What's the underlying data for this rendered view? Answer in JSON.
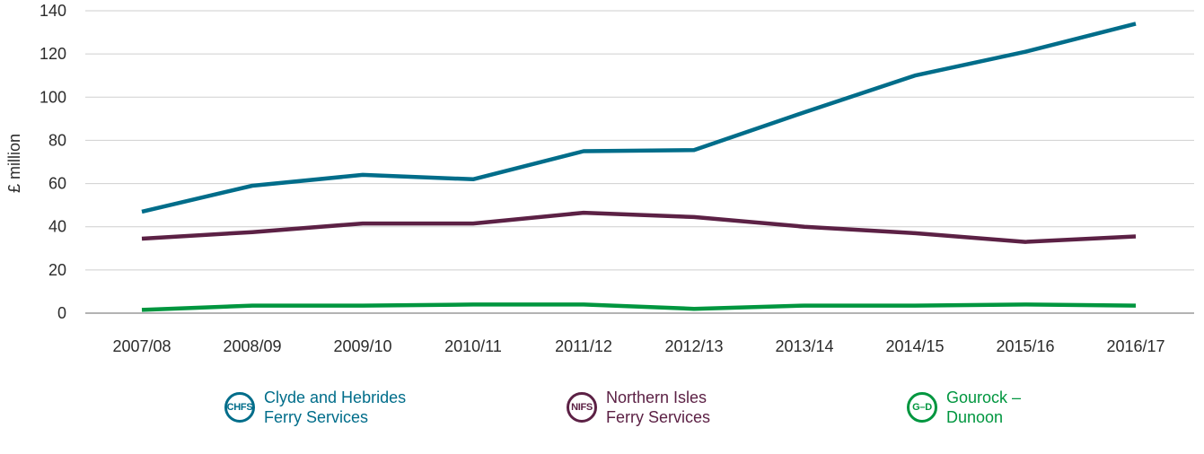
{
  "chart_data": {
    "type": "line",
    "title": "",
    "xlabel": "",
    "ylabel": "£ million",
    "ylim": [
      0,
      140
    ],
    "yticks": [
      0,
      20,
      40,
      60,
      80,
      100,
      120,
      140
    ],
    "grid": true,
    "legend_placement": "bottom",
    "categories": [
      "2007/08",
      "2008/09",
      "2009/10",
      "2010/11",
      "2011/12",
      "2012/13",
      "2013/14",
      "2014/15",
      "2015/16",
      "2016/17"
    ],
    "series": [
      {
        "name": "Clyde and Hebrides Ferry Services",
        "badge": "CHFS",
        "label_lines": [
          "Clyde and Hebrides",
          "Ferry Services"
        ],
        "color": "#006D8A",
        "values": [
          47,
          59,
          64,
          62,
          75,
          75.5,
          93,
          110,
          121,
          134
        ]
      },
      {
        "name": "Northern Isles Ferry Services",
        "badge": "NIFS",
        "label_lines": [
          "Northern Isles",
          "Ferry Services"
        ],
        "color": "#5C2145",
        "values": [
          34.5,
          37.5,
          41.5,
          41.5,
          46.5,
          44.5,
          40,
          37,
          33,
          35.5
        ]
      },
      {
        "name": "Gourock – Dunoon",
        "badge": "G–D",
        "label_lines": [
          "Gourock –",
          "Dunoon"
        ],
        "color": "#00963F",
        "values": [
          1.5,
          3.5,
          3.5,
          4,
          4,
          2,
          3.5,
          3.5,
          4,
          3.5
        ]
      }
    ]
  },
  "colors": {
    "grid": "#cfcfcf",
    "axis": "#9a9a9a",
    "text": "#2b2b2b"
  }
}
